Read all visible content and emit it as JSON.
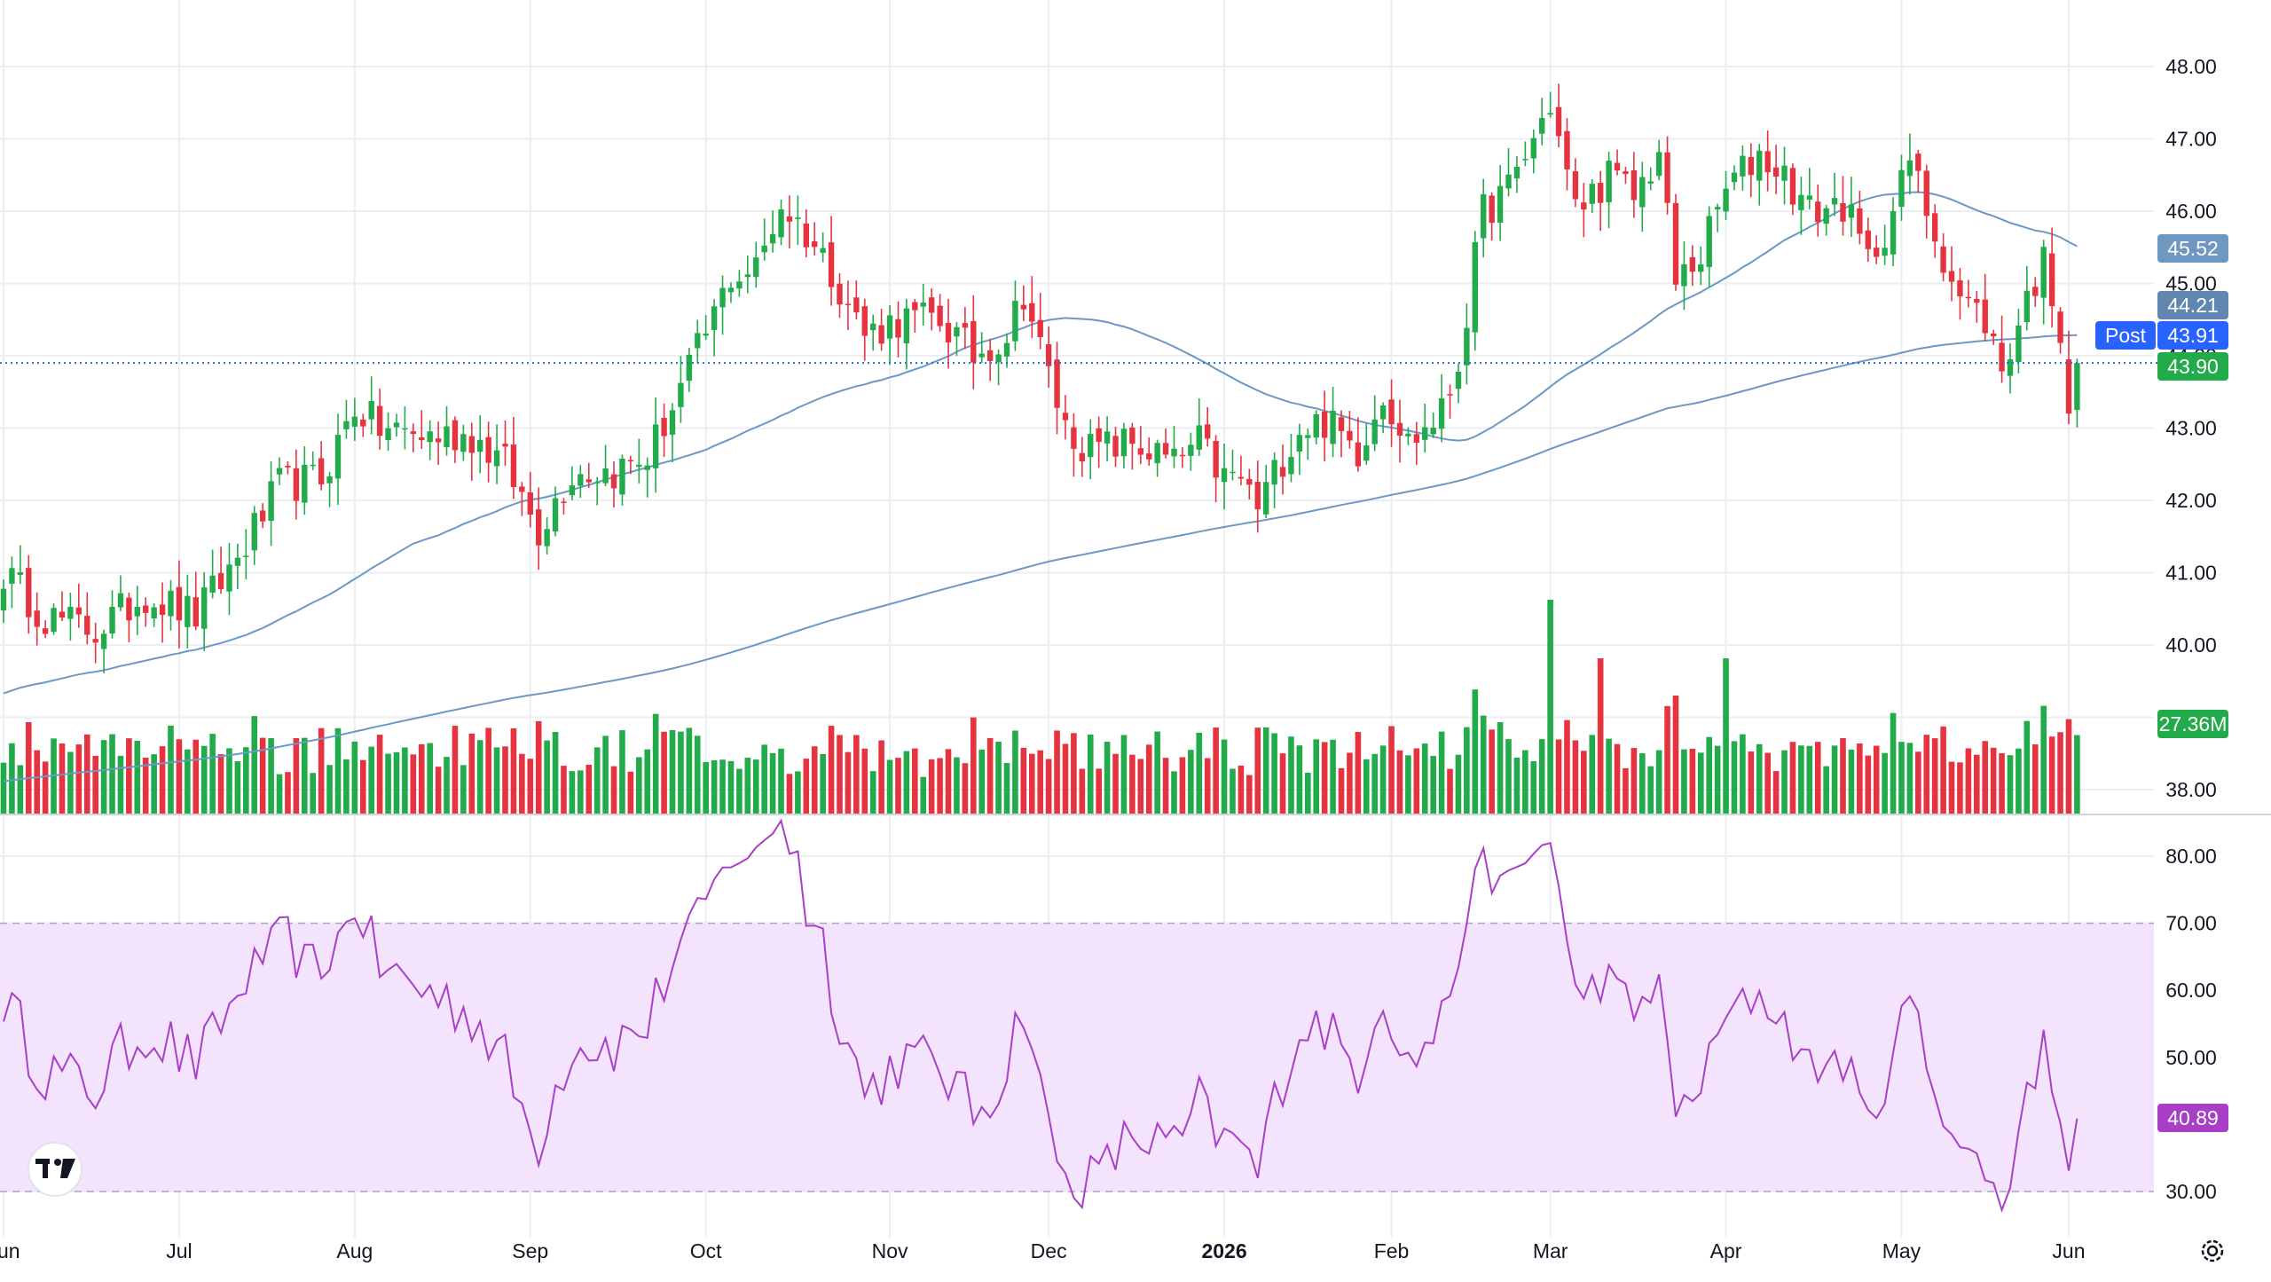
{
  "colors": {
    "up": "#22ab4a",
    "down": "#e5343f",
    "ma": "#6b98c4",
    "rsi_line": "#a83fc7",
    "rsi_band": "#f3e3fd",
    "grid": "#eceef2",
    "axis_text": "#131722",
    "price_line": "#1f6fd6",
    "post_badge": "#2862ff",
    "ma50_badge": "#6e97c2",
    "ma200_badge": "#6186b0",
    "last_badge": "#22ab4a",
    "volume_badge": "#22ab4a",
    "rsi_badge": "#a83fc7"
  },
  "icons": {
    "logo": "tradingview-logo-icon",
    "settings": "settings-gear-icon"
  },
  "chart_data": [
    {
      "type": "candlestick",
      "name": "price",
      "ylim": [
        37.6,
        48.6
      ],
      "y_ticks": [
        "38.00",
        "39.00",
        "40.00",
        "41.00",
        "42.00",
        "43.00",
        "44.00",
        "45.00",
        "46.00",
        "47.00",
        "48.00"
      ],
      "x_ticks": [
        {
          "label": "Jun",
          "i": 0
        },
        {
          "label": "Jul",
          "i": 21
        },
        {
          "label": "Aug",
          "i": 42
        },
        {
          "label": "Sep",
          "i": 63
        },
        {
          "label": "Oct",
          "i": 84
        },
        {
          "label": "Nov",
          "i": 106
        },
        {
          "label": "Dec",
          "i": 125
        },
        {
          "label": "2026",
          "i": 146,
          "bold": true
        },
        {
          "label": "Feb",
          "i": 166
        },
        {
          "label": "Mar",
          "i": 185
        },
        {
          "label": "Apr",
          "i": 206
        },
        {
          "label": "May",
          "i": 227
        },
        {
          "label": "Jun",
          "i": 247
        }
      ],
      "anchors_close": [
        [
          0,
          41.0
        ],
        [
          5,
          40.4
        ],
        [
          11,
          40.2
        ],
        [
          17,
          40.7
        ],
        [
          23,
          40.4
        ],
        [
          28,
          41.2
        ],
        [
          33,
          42.2
        ],
        [
          38,
          42.3
        ],
        [
          42,
          43.3
        ],
        [
          45,
          43.0
        ],
        [
          50,
          42.9
        ],
        [
          56,
          42.9
        ],
        [
          60,
          42.5
        ],
        [
          64,
          41.6
        ],
        [
          68,
          42.4
        ],
        [
          73,
          42.4
        ],
        [
          77,
          42.6
        ],
        [
          80,
          43.3
        ],
        [
          84,
          44.3
        ],
        [
          87,
          45.1
        ],
        [
          90,
          45.2
        ],
        [
          93,
          46.1
        ],
        [
          96,
          45.7
        ],
        [
          99,
          45.2
        ],
        [
          103,
          44.3
        ],
        [
          107,
          44.5
        ],
        [
          112,
          44.5
        ],
        [
          116,
          44.0
        ],
        [
          120,
          44.3
        ],
        [
          122,
          44.9
        ],
        [
          124,
          44.1
        ],
        [
          127,
          43.0
        ],
        [
          130,
          42.7
        ],
        [
          135,
          42.8
        ],
        [
          140,
          42.5
        ],
        [
          143,
          42.8
        ],
        [
          146,
          42.3
        ],
        [
          148,
          42.3
        ],
        [
          150,
          41.9
        ],
        [
          153,
          42.6
        ],
        [
          155,
          43.0
        ],
        [
          158,
          43.1
        ],
        [
          162,
          42.7
        ],
        [
          165,
          43.5
        ],
        [
          168,
          42.8
        ],
        [
          172,
          43.2
        ],
        [
          174,
          43.9
        ],
        [
          177,
          46.0
        ],
        [
          180,
          46.3
        ],
        [
          183,
          47.0
        ],
        [
          185,
          47.5
        ],
        [
          188,
          46.0
        ],
        [
          192,
          46.5
        ],
        [
          195,
          46.2
        ],
        [
          198,
          46.8
        ],
        [
          200,
          45.0
        ],
        [
          203,
          45.4
        ],
        [
          206,
          46.3
        ],
        [
          210,
          46.8
        ],
        [
          213,
          46.5
        ],
        [
          216,
          46.0
        ],
        [
          220,
          46.1
        ],
        [
          223,
          45.3
        ],
        [
          226,
          46.0
        ],
        [
          228,
          46.7
        ],
        [
          231,
          45.7
        ],
        [
          234,
          44.8
        ],
        [
          237,
          44.5
        ],
        [
          239,
          43.8
        ],
        [
          242,
          44.8
        ],
        [
          244,
          45.3
        ],
        [
          246,
          44.4
        ],
        [
          247,
          43.2
        ],
        [
          248,
          43.9
        ]
      ],
      "last_price": "43.90",
      "post_price": "43.91",
      "post_label": "Post",
      "ma_50_last": "45.52",
      "ma_200_last": "44.21"
    },
    {
      "type": "bar",
      "name": "volume",
      "last_label": "27.36M"
    },
    {
      "type": "line",
      "name": "RSI",
      "ylim": [
        27.5,
        82.5
      ],
      "y_ticks": [
        "30.00",
        "40.00",
        "50.00",
        "60.00",
        "70.00",
        "80.00"
      ],
      "band": [
        30,
        70
      ],
      "last_value": "40.89"
    }
  ]
}
